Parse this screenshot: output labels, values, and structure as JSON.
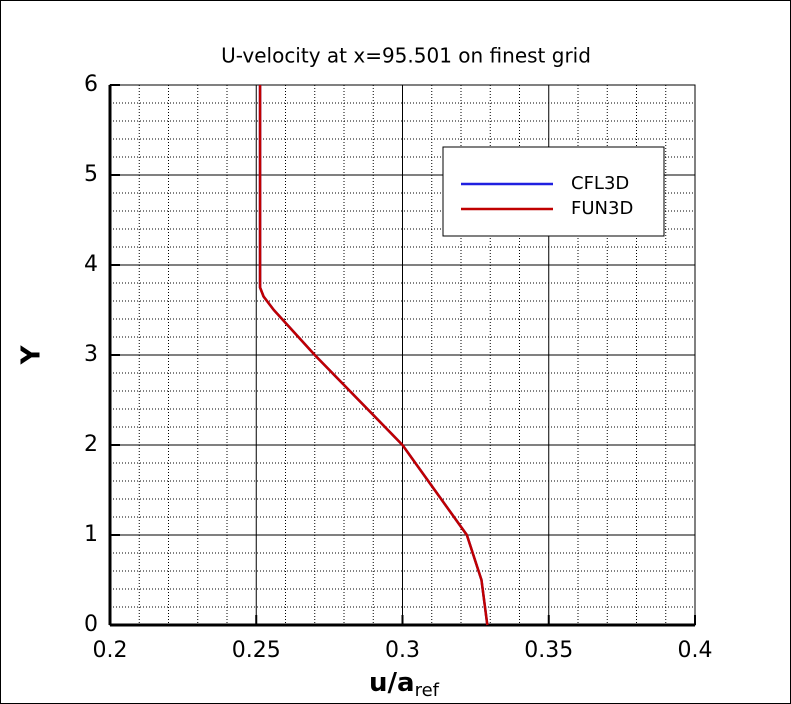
{
  "chart_data": {
    "type": "line",
    "title": "U-velocity at x=95.501 on finest grid",
    "xlabel": {
      "main": "u/a",
      "sub": "ref"
    },
    "ylabel": "Y",
    "xlim": [
      0.2,
      0.4
    ],
    "xticks": [
      0.2,
      0.25,
      0.3,
      0.35,
      0.4
    ],
    "ylim": [
      0,
      6
    ],
    "yticks": [
      0,
      1,
      2,
      3,
      4,
      5,
      6
    ],
    "grid": true,
    "legend": "upper right",
    "series": [
      {
        "name": "CFL3D",
        "color": "#2020e0",
        "x": [
          0.329,
          0.327,
          0.322,
          0.311,
          0.3,
          0.285,
          0.27,
          0.256,
          0.2525,
          0.2513,
          0.2513
        ],
        "y": [
          0,
          0.5,
          1,
          1.5,
          2,
          2.5,
          3,
          3.5,
          3.65,
          3.75,
          6
        ]
      },
      {
        "name": "FUN3D",
        "color": "#c00000",
        "x": [
          0.329,
          0.327,
          0.322,
          0.311,
          0.3,
          0.285,
          0.27,
          0.256,
          0.2525,
          0.2513,
          0.2513
        ],
        "y": [
          0,
          0.5,
          1,
          1.5,
          2,
          2.5,
          3,
          3.5,
          3.65,
          3.75,
          6
        ]
      }
    ]
  }
}
